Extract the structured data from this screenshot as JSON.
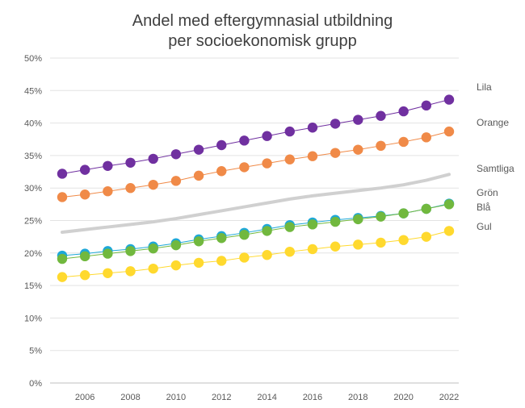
{
  "chart_data": {
    "type": "line",
    "title_lines": [
      "Andel med eftergymnasial utbildning",
      "per socioekonomisk grupp"
    ],
    "xlabel": "",
    "ylabel": "",
    "x": [
      2005,
      2006,
      2007,
      2008,
      2009,
      2010,
      2011,
      2012,
      2013,
      2014,
      2015,
      2016,
      2017,
      2018,
      2019,
      2020,
      2021,
      2022
    ],
    "x_tick_labels": [
      "2006",
      "2008",
      "2010",
      "2012",
      "2014",
      "2016",
      "2018",
      "2020",
      "2022"
    ],
    "x_tick_values": [
      2006,
      2008,
      2010,
      2012,
      2014,
      2016,
      2018,
      2020,
      2022
    ],
    "ylim": [
      0,
      0.5
    ],
    "y_tick_labels": [
      "0%",
      "5%",
      "10%",
      "15%",
      "20%",
      "25%",
      "30%",
      "35%",
      "40%",
      "45%",
      "50%"
    ],
    "y_tick_values": [
      0,
      0.05,
      0.1,
      0.15,
      0.2,
      0.25,
      0.3,
      0.35,
      0.4,
      0.45,
      0.5
    ],
    "grid": "horizontal",
    "legend": "right, inline series labels",
    "series": [
      {
        "name": "Lila",
        "color": "#7030A0",
        "markers": true,
        "values": [
          0.322,
          0.328,
          0.334,
          0.339,
          0.345,
          0.352,
          0.359,
          0.366,
          0.373,
          0.38,
          0.387,
          0.393,
          0.399,
          0.405,
          0.411,
          0.418,
          0.427,
          0.436
        ]
      },
      {
        "name": "Orange",
        "color": "#F08A48",
        "markers": true,
        "values": [
          0.286,
          0.29,
          0.295,
          0.3,
          0.305,
          0.311,
          0.319,
          0.326,
          0.332,
          0.338,
          0.344,
          0.349,
          0.354,
          0.359,
          0.365,
          0.371,
          0.378,
          0.387
        ]
      },
      {
        "name": "Samtliga",
        "color": "#D0D0D0",
        "markers": false,
        "values": [
          0.232,
          0.236,
          0.24,
          0.244,
          0.248,
          0.253,
          0.259,
          0.265,
          0.271,
          0.277,
          0.283,
          0.288,
          0.292,
          0.296,
          0.3,
          0.305,
          0.312,
          0.321
        ]
      },
      {
        "name": "Grön",
        "color": "#71B83E",
        "markers": true,
        "values": [
          0.191,
          0.195,
          0.199,
          0.203,
          0.207,
          0.212,
          0.218,
          0.223,
          0.228,
          0.234,
          0.24,
          0.244,
          0.248,
          0.252,
          0.256,
          0.261,
          0.268,
          0.275
        ]
      },
      {
        "name": "Blå",
        "color": "#1EA8D8",
        "markers": true,
        "values": [
          0.196,
          0.199,
          0.203,
          0.206,
          0.21,
          0.215,
          0.221,
          0.226,
          0.231,
          0.237,
          0.243,
          0.247,
          0.251,
          0.254,
          0.257,
          0.261,
          0.268,
          0.276
        ]
      },
      {
        "name": "Gul",
        "color": "#FFD92E",
        "markers": true,
        "values": [
          0.163,
          0.166,
          0.169,
          0.172,
          0.176,
          0.181,
          0.185,
          0.188,
          0.193,
          0.197,
          0.202,
          0.206,
          0.21,
          0.213,
          0.216,
          0.22,
          0.225,
          0.234
        ]
      }
    ]
  }
}
